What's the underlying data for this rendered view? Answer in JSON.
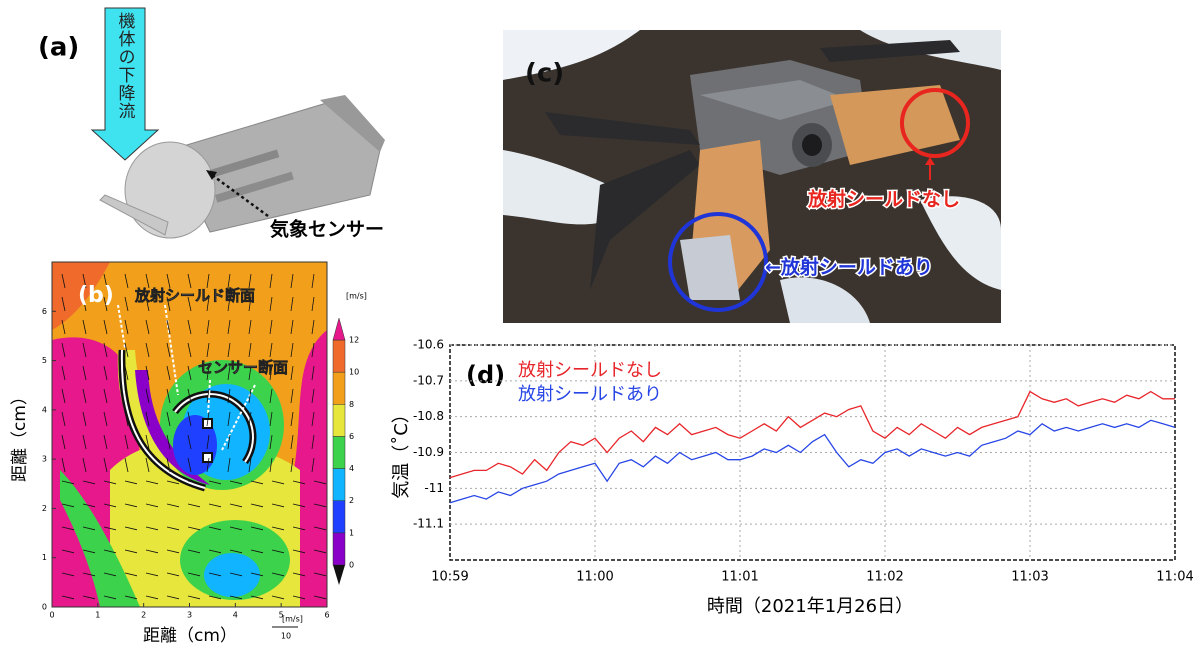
{
  "figure": {
    "a": {
      "panel_label": "(a)",
      "arrow_label": "機体の下降流",
      "sensor_label": "気象センサー"
    },
    "c": {
      "panel_label": "(c)",
      "no_shield": "放射シールドなし",
      "with_shield": "←放射シールドあり"
    }
  },
  "chart_data": [
    {
      "type": "contour",
      "panel_label": "(b)",
      "xlabel": "距離（cm）",
      "ylabel": "距離（cm）",
      "xlim": [
        0,
        6
      ],
      "ylim": [
        0,
        7
      ],
      "xticks": [
        0,
        1,
        2,
        3,
        4,
        5,
        6
      ],
      "yticks": [
        0,
        1,
        2,
        3,
        4,
        5,
        6
      ],
      "annotations": [
        "放射シールド断面",
        "センサー断面"
      ],
      "colorbar": {
        "label": "[m/s]",
        "ticks": [
          0,
          1,
          2,
          4,
          6,
          8,
          10,
          12
        ],
        "colors": [
          "#8a00c8",
          "#2040ff",
          "#10b4ff",
          "#3cd24b",
          "#e6e63c",
          "#f2a01c",
          "#f06a2c",
          "#e6188c"
        ]
      },
      "vector_key": {
        "label": "[m/s]",
        "value": 10
      }
    },
    {
      "type": "line",
      "panel_label": "(d)",
      "xlabel": "時間（2021年1月26日）",
      "ylabel": "気温（˚C）",
      "categories": [
        "10:59",
        null,
        null,
        null,
        null,
        null,
        null,
        null,
        null,
        null,
        null,
        null,
        "11:00",
        null,
        null,
        null,
        null,
        null,
        null,
        null,
        null,
        null,
        null,
        null,
        "11:01",
        null,
        null,
        null,
        null,
        null,
        null,
        null,
        null,
        null,
        null,
        null,
        "11:02",
        null,
        null,
        null,
        null,
        null,
        null,
        null,
        null,
        null,
        null,
        null,
        "11:03",
        null,
        null,
        null,
        null,
        null,
        null,
        null,
        null,
        null,
        null,
        null,
        "11:04"
      ],
      "ylim": [
        -11.2,
        -10.6
      ],
      "yticks": [
        -10.6,
        -10.7,
        -10.8,
        -10.9,
        -11,
        -11.1
      ],
      "grid": true,
      "series": [
        {
          "name": "放射シールドなし",
          "color": "#e8252a",
          "values": [
            -10.97,
            -10.96,
            -10.95,
            -10.95,
            -10.93,
            -10.94,
            -10.96,
            -10.92,
            -10.95,
            -10.9,
            -10.87,
            -10.88,
            -10.86,
            -10.9,
            -10.86,
            -10.84,
            -10.87,
            -10.83,
            -10.85,
            -10.82,
            -10.85,
            -10.84,
            -10.83,
            -10.85,
            -10.86,
            -10.84,
            -10.82,
            -10.84,
            -10.8,
            -10.83,
            -10.81,
            -10.79,
            -10.8,
            -10.78,
            -10.77,
            -10.84,
            -10.86,
            -10.83,
            -10.85,
            -10.82,
            -10.84,
            -10.86,
            -10.83,
            -10.85,
            -10.83,
            -10.82,
            -10.81,
            -10.8,
            -10.73,
            -10.75,
            -10.76,
            -10.75,
            -10.77,
            -10.76,
            -10.75,
            -10.76,
            -10.74,
            -10.75,
            -10.73,
            -10.75,
            -10.75
          ]
        },
        {
          "name": "放射シールドあり",
          "color": "#2846e6",
          "values": [
            -11.04,
            -11.03,
            -11.02,
            -11.03,
            -11.01,
            -11.02,
            -11.0,
            -10.99,
            -10.98,
            -10.96,
            -10.95,
            -10.94,
            -10.93,
            -10.98,
            -10.93,
            -10.92,
            -10.94,
            -10.91,
            -10.93,
            -10.9,
            -10.92,
            -10.91,
            -10.9,
            -10.92,
            -10.92,
            -10.91,
            -10.89,
            -10.9,
            -10.88,
            -10.9,
            -10.87,
            -10.85,
            -10.9,
            -10.94,
            -10.92,
            -10.93,
            -10.9,
            -10.89,
            -10.91,
            -10.89,
            -10.9,
            -10.91,
            -10.9,
            -10.91,
            -10.88,
            -10.87,
            -10.86,
            -10.84,
            -10.85,
            -10.82,
            -10.84,
            -10.83,
            -10.84,
            -10.83,
            -10.82,
            -10.83,
            -10.82,
            -10.83,
            -10.81,
            -10.82,
            -10.83
          ]
        }
      ]
    }
  ]
}
